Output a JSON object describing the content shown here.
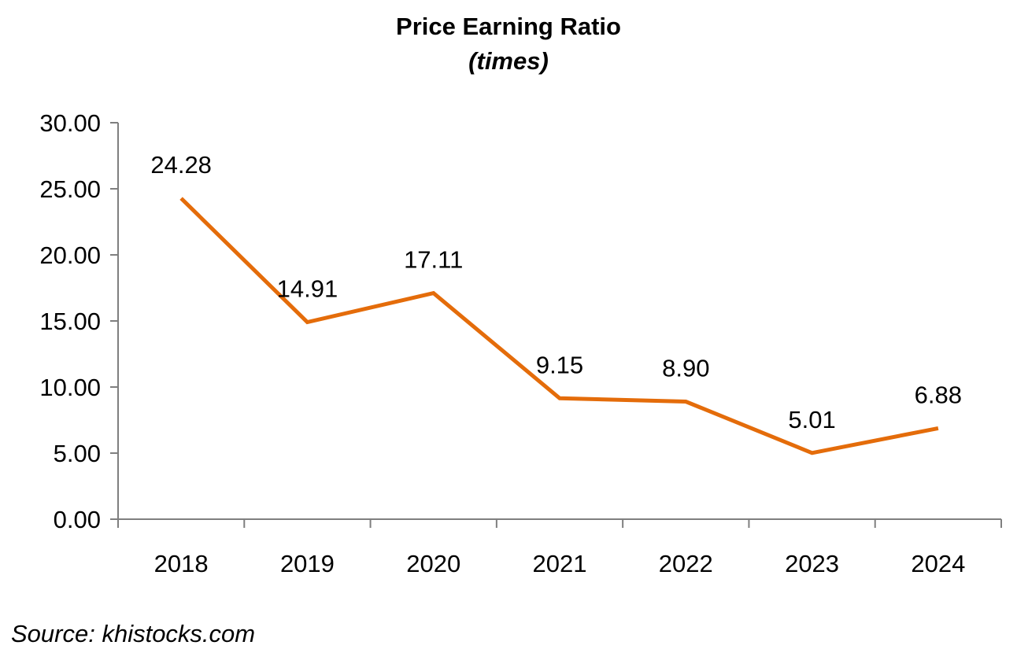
{
  "chart_data": {
    "type": "line",
    "title": "Price Earning Ratio",
    "subtitle": "(times)",
    "xlabel": "",
    "ylabel": "",
    "categories": [
      "2018",
      "2019",
      "2020",
      "2021",
      "2022",
      "2023",
      "2024"
    ],
    "series": [
      {
        "values": [
          24.28,
          14.91,
          17.11,
          9.15,
          8.9,
          5.01,
          6.88
        ],
        "labels": [
          "24.28",
          "14.91",
          "17.11",
          "9.15",
          "8.90",
          "5.01",
          "6.88"
        ],
        "color": "#E46C0A"
      }
    ],
    "ylim": [
      0,
      30
    ],
    "yticks": [
      0,
      5,
      10,
      15,
      20,
      25,
      30
    ],
    "ytick_labels": [
      "0.00",
      "5.00",
      "10.00",
      "15.00",
      "20.00",
      "25.00",
      "30.00"
    ],
    "grid": false,
    "legend": "none",
    "source": "Source: khistocks.com"
  }
}
